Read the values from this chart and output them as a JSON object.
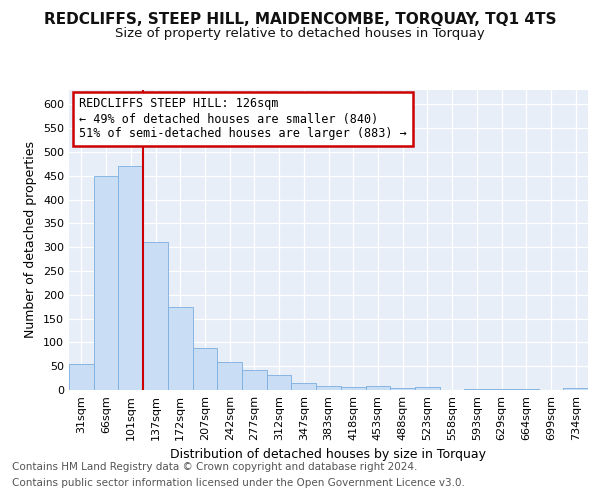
{
  "title": "REDCLIFFS, STEEP HILL, MAIDENCOMBE, TORQUAY, TQ1 4TS",
  "subtitle": "Size of property relative to detached houses in Torquay",
  "xlabel": "Distribution of detached houses by size in Torquay",
  "ylabel": "Number of detached properties",
  "categories": [
    "31sqm",
    "66sqm",
    "101sqm",
    "137sqm",
    "172sqm",
    "207sqm",
    "242sqm",
    "277sqm",
    "312sqm",
    "347sqm",
    "383sqm",
    "418sqm",
    "453sqm",
    "488sqm",
    "523sqm",
    "558sqm",
    "593sqm",
    "629sqm",
    "664sqm",
    "699sqm",
    "734sqm"
  ],
  "values": [
    55,
    450,
    470,
    310,
    175,
    88,
    58,
    42,
    32,
    15,
    8,
    7,
    8,
    5,
    7,
    0,
    3,
    2,
    2,
    0,
    5
  ],
  "bar_color": "#c9ddf5",
  "bar_edge_color": "#7aaee0",
  "marker_label": "REDCLIFFS STEEP HILL: 126sqm",
  "annotation_line1": "← 49% of detached houses are smaller (840)",
  "annotation_line2": "51% of semi-detached houses are larger (883) →",
  "annotation_box_color": "#ffffff",
  "annotation_box_edge": "#cc0000",
  "vline_color": "#cc0000",
  "vline_x_pos": 2.5,
  "ylim": [
    0,
    630
  ],
  "yticks": [
    0,
    50,
    100,
    150,
    200,
    250,
    300,
    350,
    400,
    450,
    500,
    550,
    600
  ],
  "fig_bg_color": "#ffffff",
  "plot_bg_color": "#e8eef8",
  "grid_color": "#ffffff",
  "title_fontsize": 11,
  "subtitle_fontsize": 9.5,
  "axis_label_fontsize": 9,
  "tick_fontsize": 8,
  "annotation_fontsize": 8.5,
  "footer_fontsize": 7.5,
  "footer_line1": "Contains HM Land Registry data © Crown copyright and database right 2024.",
  "footer_line2": "Contains public sector information licensed under the Open Government Licence v3.0."
}
